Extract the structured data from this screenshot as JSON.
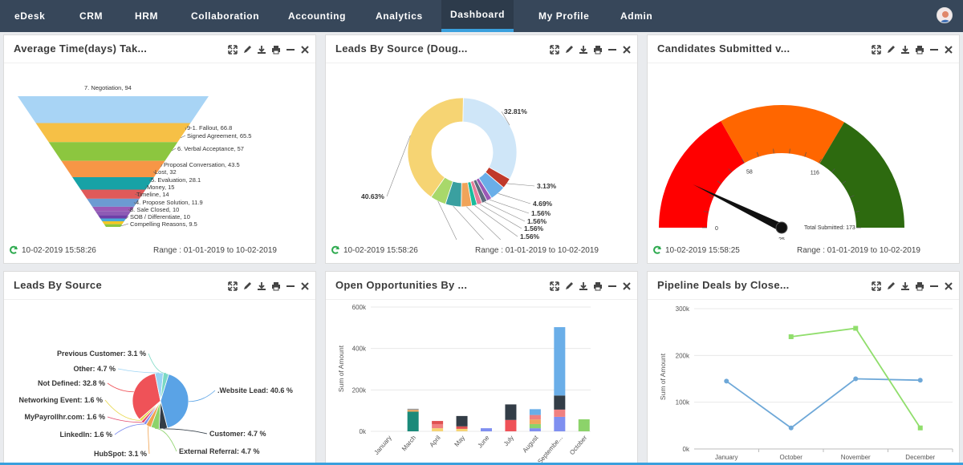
{
  "nav": {
    "items": [
      {
        "label": "eDesk"
      },
      {
        "label": "CRM"
      },
      {
        "label": "HRM"
      },
      {
        "label": "Collaboration"
      },
      {
        "label": "Accounting"
      },
      {
        "label": "Analytics"
      },
      {
        "label": "Dashboard"
      },
      {
        "label": "My Profile"
      },
      {
        "label": "Admin"
      }
    ],
    "active": "Dashboard"
  },
  "colors": {
    "nav_bg": "#37475a",
    "accent": "#3aa0dd"
  },
  "tool_icons": [
    "expand-icon",
    "edit-icon",
    "download-icon",
    "print-icon",
    "minimize-icon",
    "close-icon"
  ],
  "widgets": {
    "w1": {
      "title": "Average Time(days) Tak...",
      "date": "10-02-2019 15:58:26",
      "range": "Range : 01-01-2019 to 10-02-2019"
    },
    "w2": {
      "title": "Leads By Source (Doug...",
      "date": "10-02-2019 15:58:26",
      "range": "Range : 01-01-2019 to 10-02-2019"
    },
    "w3": {
      "title": "Candidates Submitted v...",
      "date": "10-02-2019 15:58:25",
      "range": "Range : 01-01-2019 to 10-02-2019"
    },
    "w4": {
      "title": "Leads By Source"
    },
    "w5": {
      "title": "Open Opportunities By ..."
    },
    "w6": {
      "title": "Pipeline Deals by Close..."
    }
  },
  "chart_data": [
    {
      "id": "funnel",
      "type": "funnel",
      "labels": [
        "7. Negotiation, 94",
        "9-1. Fallout, 66.8",
        "Signed Agreement, 65.5",
        "6. Verbal Acceptance, 57",
        "Proposal Conversation, 43.5",
        "Lost, 32",
        "5. Evaluation, 28.1",
        "Money, 15",
        "Timeline, 14",
        "4. Propose Solution, 11.9",
        "8. Sale Closed, 10",
        "SOB / Differentiate, 10",
        "Compelling Reasons, 9.5"
      ],
      "values": [
        94,
        66.8,
        65.5,
        57,
        43.5,
        32,
        28.1,
        15,
        14,
        11.9,
        10,
        10,
        9.5
      ],
      "colors": [
        "#a8d4f5",
        "#f6c046",
        "#8cc63f",
        "#f79646",
        "#17a2a6",
        "#e05a5a",
        "#6c9bd2",
        "#9b59b6",
        "#8e5ab5",
        "#6f3ea8",
        "#4aa8d8",
        "#f3c623",
        "#8cc63f"
      ]
    },
    {
      "id": "donut",
      "type": "pie",
      "values": [
        32.81,
        3.13,
        4.69,
        1.56,
        1.56,
        1.56,
        1.56,
        3.13,
        4.69,
        4.69,
        40.63
      ],
      "labels": [
        "32.81%",
        "3.13%",
        "4.69%",
        "1.56%",
        "1.56%",
        "1.56%",
        "1.56%",
        "3.13%",
        "4.69%",
        "4.69%",
        "40.63%"
      ],
      "colors": [
        "#cfe6f8",
        "#c0392b",
        "#6aaee8",
        "#9b59b6",
        "#5d6d7e",
        "#e67e9a",
        "#1abc9c",
        "#f0a45a",
        "#3aa0a0",
        "#a8d86a",
        "#f6d473"
      ]
    },
    {
      "id": "gauge",
      "type": "gauge",
      "min": 0,
      "max": 173,
      "value": 25,
      "ticks": [
        "0",
        "58",
        "116"
      ],
      "pointer_label": "25",
      "total_label": "Total Submitted: 173",
      "bands": [
        {
          "from": 0,
          "to": 58,
          "color": "#ff0000"
        },
        {
          "from": 58,
          "to": 116,
          "color": "#ff6600"
        },
        {
          "from": 116,
          "to": 173,
          "color": "#2d6a0f"
        }
      ]
    },
    {
      "id": "pie",
      "type": "pie",
      "labels": [
        ".Website Lead: 40.6 %",
        "Customer: 4.7 %",
        "External Referral: 4.7 %",
        "HubSpot: 3.1 %",
        "LinkedIn: 1.6 %",
        "MyPayrollhr.com: 1.6 %",
        "Networking Event: 1.6 %",
        "Not Defined: 32.8 %",
        "Other: 4.7 %",
        "Previous Customer: 3.1 %"
      ],
      "values": [
        40.6,
        4.7,
        4.7,
        3.1,
        1.6,
        1.6,
        1.6,
        32.8,
        4.7,
        3.1
      ],
      "colors": [
        "#5aa3e6",
        "#333d47",
        "#8cd36a",
        "#f0a24f",
        "#7f8ff0",
        "#e34d6e",
        "#e8d84b",
        "#ef5258",
        "#9ad3f4",
        "#7ad9c4"
      ]
    },
    {
      "id": "stacked",
      "type": "bar",
      "categories": [
        "January",
        "March",
        "April",
        "May",
        "June",
        "July",
        "August",
        "September",
        "October"
      ],
      "category_labels": [
        "January",
        "March",
        "April",
        "May",
        "June",
        "July",
        "August",
        "Septembe...",
        "October"
      ],
      "ylabel": "Sum of Amount",
      "yticks": [
        "0k",
        "200k",
        "400k",
        "600k"
      ],
      "ylim": [
        0,
        600000
      ],
      "stacks": [
        [],
        [
          {
            "v": 95000,
            "c": "#1a8a7a"
          },
          {
            "v": 8000,
            "c": "#f0a45a"
          },
          {
            "v": 6000,
            "c": "#9a9a9a"
          }
        ],
        [
          {
            "v": 15000,
            "c": "#f6d473"
          },
          {
            "v": 20000,
            "c": "#f08080"
          },
          {
            "v": 15000,
            "c": "#e05050"
          }
        ],
        [
          {
            "v": 12000,
            "c": "#f6d473"
          },
          {
            "v": 12000,
            "c": "#e05050"
          },
          {
            "v": 50000,
            "c": "#333d47"
          }
        ],
        [
          {
            "v": 15000,
            "c": "#7f8ff0"
          }
        ],
        [
          {
            "v": 55000,
            "c": "#ef5258"
          },
          {
            "v": 75000,
            "c": "#333d47"
          }
        ],
        [
          {
            "v": 15000,
            "c": "#7f8ff0"
          },
          {
            "v": 20000,
            "c": "#8cd36a"
          },
          {
            "v": 22000,
            "c": "#f0a45a"
          },
          {
            "v": 22000,
            "c": "#f08080"
          },
          {
            "v": 28000,
            "c": "#6aaee8"
          }
        ],
        [
          {
            "v": 70000,
            "c": "#7f8ff0"
          },
          {
            "v": 35000,
            "c": "#f08080"
          },
          {
            "v": 68000,
            "c": "#333d47"
          },
          {
            "v": 330000,
            "c": "#6aaee8"
          }
        ],
        [
          {
            "v": 58000,
            "c": "#8cd36a"
          }
        ]
      ]
    },
    {
      "id": "lines",
      "type": "line",
      "categories": [
        "January",
        "October",
        "November",
        "December"
      ],
      "ylabel": "Sum of Amount",
      "yticks": [
        "0k",
        "100k",
        "200k",
        "300k"
      ],
      "ylim": [
        0,
        300000
      ],
      "series": [
        {
          "color": "#6ea8d8",
          "values": [
            145000,
            45000,
            150000,
            147000
          ]
        },
        {
          "color": "#90de6c",
          "values": [
            null,
            240000,
            258000,
            45000
          ]
        }
      ]
    }
  ]
}
